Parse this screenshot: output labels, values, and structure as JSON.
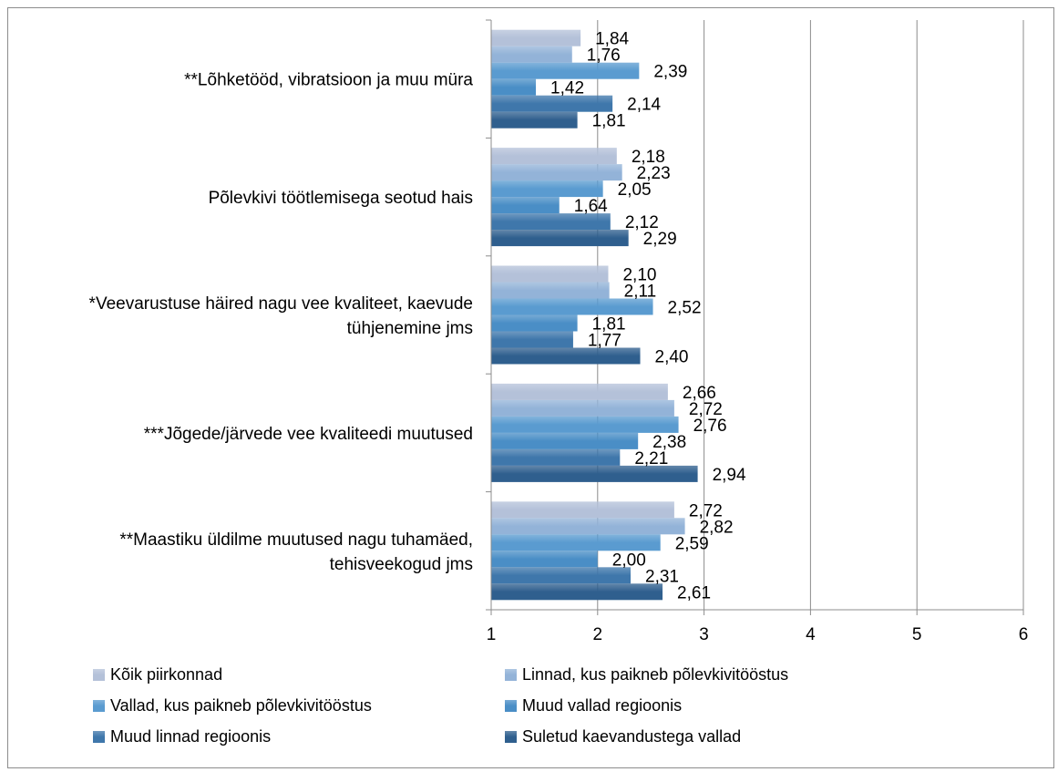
{
  "chart_data": {
    "type": "bar",
    "orientation": "horizontal",
    "title": "",
    "xlabel": "",
    "ylabel": "",
    "xlim": [
      1,
      6
    ],
    "x_ticks": [
      "1",
      "2",
      "3",
      "4",
      "5",
      "6"
    ],
    "grid": true,
    "legend_position": "bottom",
    "categories": [
      "**Lõhketööd, vibratsioon ja muu müra",
      "Põlevkivi töötlemisega seotud hais",
      "*Veevarustuse häired nagu vee kvaliteet, kaevude tühjenemine jms",
      "***Jõgede/järvede vee kvaliteedi muutused",
      "**Maastiku üldilme muutused nagu tuhamäed, tehisveekogud jms"
    ],
    "category_lines": [
      [
        "**Lõhketööd, vibratsioon ja muu müra"
      ],
      [
        "Põlevkivi töötlemisega seotud hais"
      ],
      [
        "*Veevarustuse häired nagu vee kvaliteet, kaevude",
        "tühjenemine jms"
      ],
      [
        "***Jõgede/järvede vee kvaliteedi muutused"
      ],
      [
        "**Maastiku üldilme muutused nagu tuhamäed,",
        "tehisveekogud jms"
      ]
    ],
    "series": [
      {
        "name": "Kõik piirkonnad",
        "color": "#b4c1d9",
        "values": [
          1.84,
          2.18,
          2.1,
          2.66,
          2.72
        ],
        "labels": [
          "1,84",
          "2,18",
          "2,10",
          "2,66",
          "2,72"
        ]
      },
      {
        "name": "Linnad, kus paikneb põlevkivitööstus",
        "color": "#93b3d8",
        "values": [
          1.76,
          2.23,
          2.11,
          2.72,
          2.82
        ],
        "labels": [
          "1,76",
          "2,23",
          "2,11",
          "2,72",
          "2,82"
        ]
      },
      {
        "name": "Vallad, kus paikneb põlevkivitööstus",
        "color": "#5a9bd0",
        "values": [
          2.39,
          2.05,
          2.52,
          2.76,
          2.59
        ],
        "labels": [
          "2,39",
          "2,05",
          "2,52",
          "2,76",
          "2,59"
        ]
      },
      {
        "name": "Muud vallad regioonis",
        "color": "#4a8ec6",
        "values": [
          1.42,
          1.64,
          1.81,
          2.38,
          2.0
        ],
        "labels": [
          "1,42",
          "1,64",
          "1,81",
          "2,38",
          "2,00"
        ]
      },
      {
        "name": "Muud linnad regioonis",
        "color": "#3f77ab",
        "values": [
          2.14,
          2.12,
          1.77,
          2.21,
          2.31
        ],
        "labels": [
          "2,14",
          "2,12",
          "1,77",
          "2,21",
          "2,31"
        ]
      },
      {
        "name": "Suletud kaevandustega vallad",
        "color": "#2f5f8e",
        "values": [
          1.81,
          2.29,
          2.4,
          2.94,
          2.61
        ],
        "labels": [
          "1,81",
          "2,29",
          "2,40",
          "2,94",
          "2,61"
        ]
      }
    ]
  }
}
